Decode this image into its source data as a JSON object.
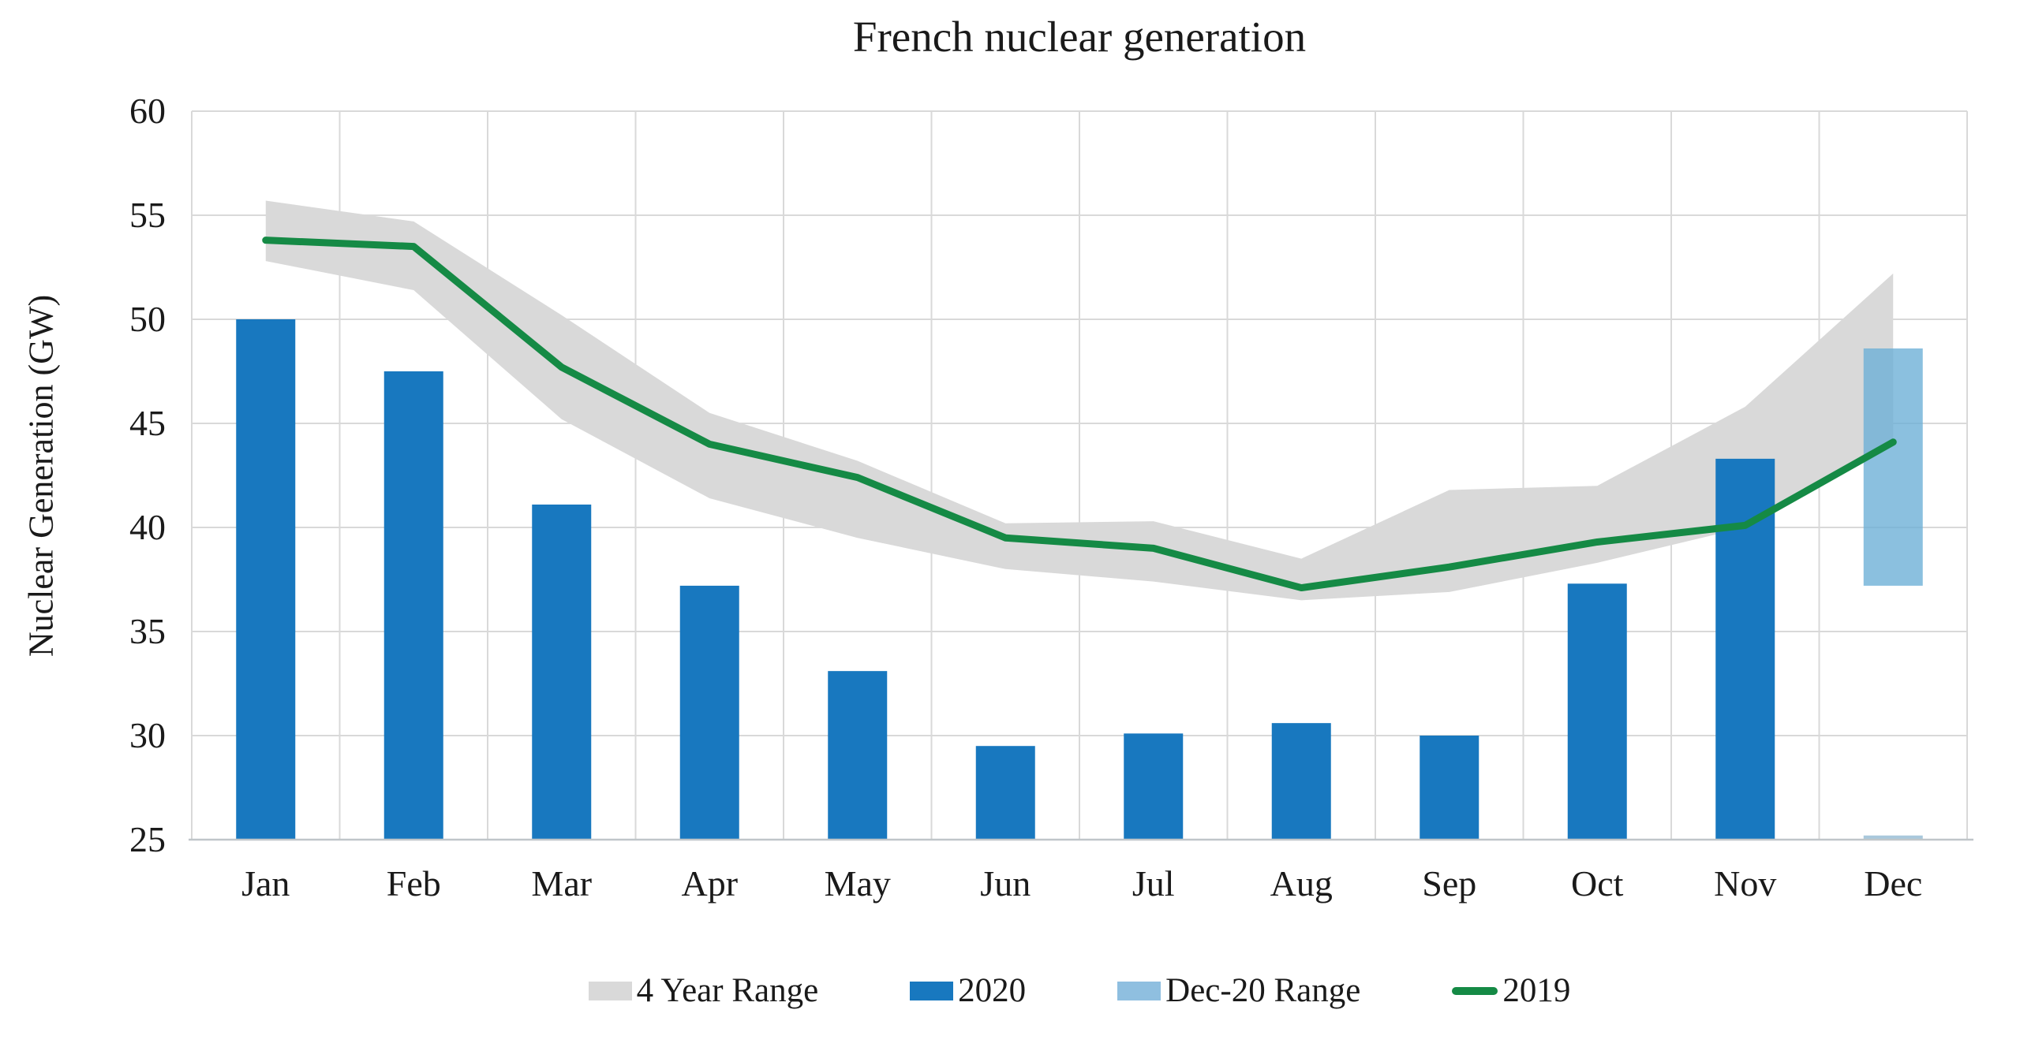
{
  "chart": {
    "title": "French nuclear generation",
    "y_axis_label": "Nuclear Generation (GW)",
    "y_ticks": [
      60,
      55,
      50,
      45,
      40,
      35,
      30,
      25
    ],
    "y_min": 25,
    "y_max": 60
  },
  "colors": {
    "band": "#d9d9d9",
    "bar2020": "#1878bf",
    "dec20_range": "#6aaed6",
    "dec20_legend": "#8fbfe0",
    "dec_sliver": "#a9c8dc",
    "line2019": "#158a45",
    "gridline": "#d9d9d9",
    "axis_line": "#c0c6c9",
    "text": "#1a1a1a"
  },
  "legend": {
    "items": [
      {
        "label": "4 Year Range",
        "swatch": "box",
        "color_key": "band"
      },
      {
        "label": "2020",
        "swatch": "box",
        "color_key": "bar2020"
      },
      {
        "label": "Dec-20 Range",
        "swatch": "box",
        "color_key": "dec20_legend"
      },
      {
        "label": "2019",
        "swatch": "line",
        "color_key": "line2019"
      }
    ]
  },
  "chart_data": {
    "type": "combo: bar + line + range-band + range-bar",
    "title": "French nuclear generation",
    "xlabel": "",
    "ylabel": "Nuclear Generation (GW)",
    "ylim": [
      25,
      60
    ],
    "grid": true,
    "legend_position": "bottom",
    "categories": [
      "Jan",
      "Feb",
      "Mar",
      "Apr",
      "May",
      "Jun",
      "Jul",
      "Aug",
      "Sep",
      "Oct",
      "Nov",
      "Dec"
    ],
    "series": [
      {
        "name": "4 Year Range",
        "type": "band",
        "upper": [
          55.7,
          54.7,
          50.2,
          45.5,
          43.2,
          40.2,
          40.3,
          38.5,
          41.8,
          42.0,
          45.8,
          52.2
        ],
        "lower": [
          52.8,
          51.4,
          45.2,
          41.4,
          39.5,
          38.0,
          37.4,
          36.5,
          36.9,
          38.3,
          40.0,
          44.0
        ]
      },
      {
        "name": "2020",
        "type": "bar",
        "values": [
          50.0,
          47.5,
          41.1,
          37.2,
          33.1,
          29.5,
          30.1,
          30.6,
          30.0,
          37.3,
          43.3,
          25.2
        ],
        "note": "Dec 2020 is a thin pale-blue sliver just above the axis"
      },
      {
        "name": "Dec-20 Range",
        "type": "range-bar",
        "month": "Dec",
        "low": 37.2,
        "high": 48.6
      },
      {
        "name": "2019",
        "type": "line",
        "values": [
          53.8,
          53.5,
          47.7,
          44.0,
          42.4,
          39.5,
          39.0,
          37.1,
          38.1,
          39.3,
          40.1,
          44.1
        ]
      }
    ]
  }
}
